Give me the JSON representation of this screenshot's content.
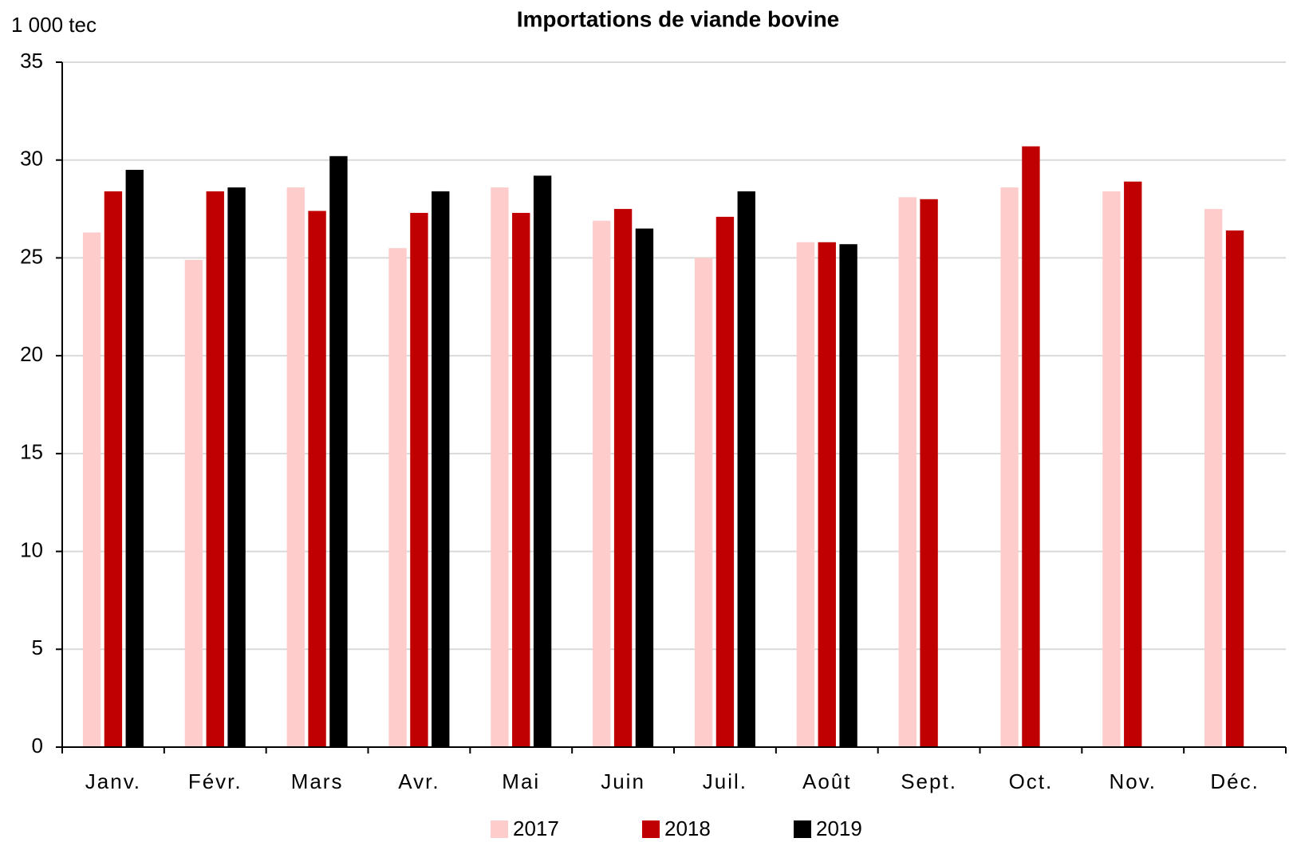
{
  "chart_data": {
    "type": "bar",
    "title": "Importations de viande bovine",
    "y_unit": "1 000 tec",
    "categories": [
      "Janv.",
      "Févr.",
      "Mars",
      "Avr.",
      "Mai",
      "Juin",
      "Juil.",
      "Août",
      "Sept.",
      "Oct.",
      "Nov.",
      "Déc."
    ],
    "series": [
      {
        "name": "2017",
        "color": "#ffcccc",
        "values": [
          26.3,
          24.9,
          28.6,
          25.5,
          28.6,
          26.9,
          25.0,
          25.8,
          28.1,
          28.6,
          28.4,
          27.5
        ]
      },
      {
        "name": "2018",
        "color": "#c00000",
        "values": [
          28.4,
          28.4,
          27.4,
          27.3,
          27.3,
          27.5,
          27.1,
          25.8,
          28.0,
          30.7,
          28.9,
          26.4
        ]
      },
      {
        "name": "2019",
        "color": "#000000",
        "values": [
          29.5,
          28.6,
          30.2,
          28.4,
          29.2,
          26.5,
          28.4,
          25.7,
          null,
          null,
          null,
          null
        ]
      }
    ],
    "ylim": [
      0,
      35
    ],
    "yticks": [
      0,
      5,
      10,
      15,
      20,
      25,
      30,
      35
    ],
    "grid": true,
    "legend": "bottom"
  }
}
